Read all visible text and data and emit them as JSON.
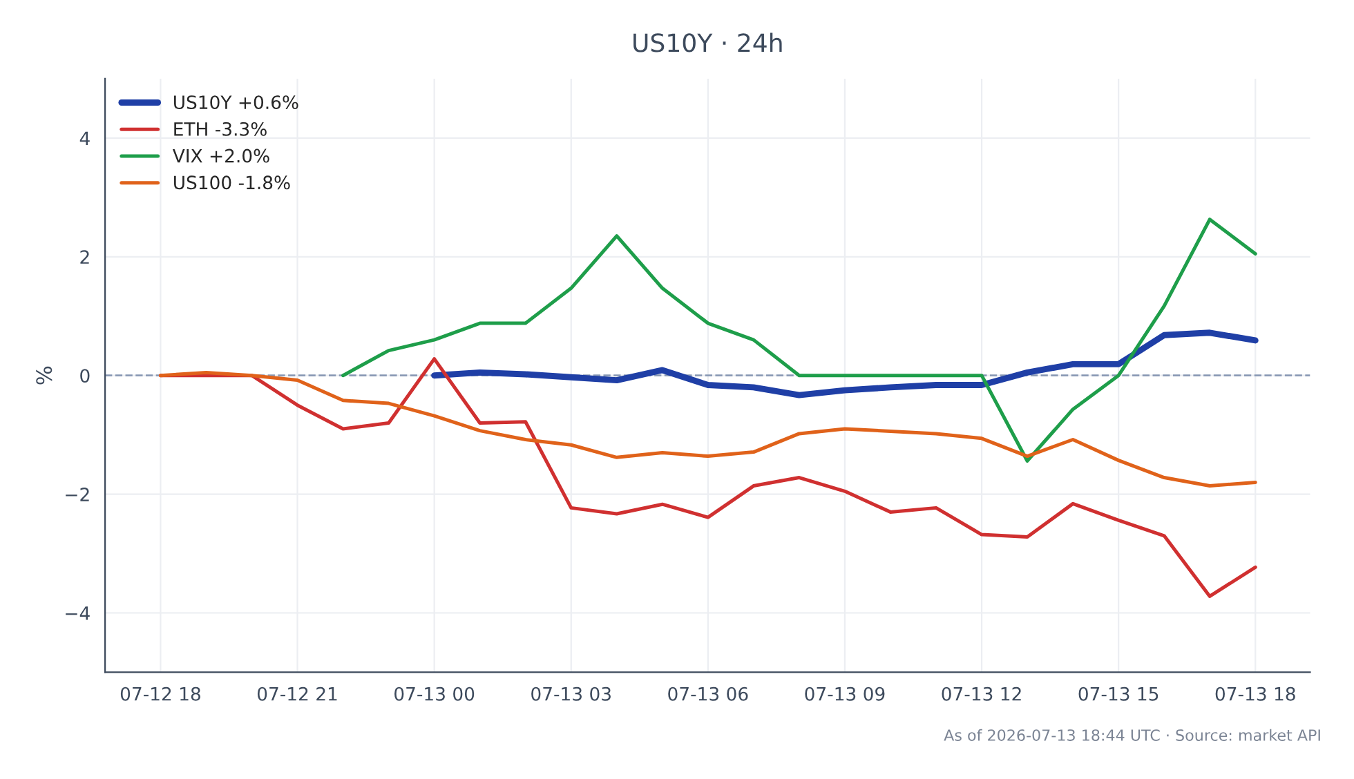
{
  "chart_data": {
    "type": "line",
    "title": "US10Y · 24h",
    "ylabel": "%",
    "x": [
      "2026-07-12T18:00",
      "2026-07-12T19:00",
      "2026-07-12T20:00",
      "2026-07-12T21:00",
      "2026-07-12T22:00",
      "2026-07-12T23:00",
      "2026-07-13T00:00",
      "2026-07-13T01:00",
      "2026-07-13T02:00",
      "2026-07-13T03:00",
      "2026-07-13T04:00",
      "2026-07-13T05:00",
      "2026-07-13T06:00",
      "2026-07-13T07:00",
      "2026-07-13T08:00",
      "2026-07-13T09:00",
      "2026-07-13T10:00",
      "2026-07-13T11:00",
      "2026-07-13T12:00",
      "2026-07-13T13:00",
      "2026-07-13T14:00",
      "2026-07-13T15:00",
      "2026-07-13T16:00",
      "2026-07-13T17:00",
      "2026-07-13T18:00"
    ],
    "series": [
      {
        "name": "US10Y +0.6%",
        "color": "#1f3fa6",
        "values": [
          null,
          null,
          null,
          null,
          null,
          null,
          0,
          0.05,
          0.02,
          -0.03,
          -0.08,
          0.09,
          -0.16,
          -0.2,
          -0.33,
          -0.25,
          -0.2,
          -0.16,
          -0.16,
          0.05,
          0.19,
          0.19,
          0.68,
          0.72,
          0.59
        ]
      },
      {
        "name": "ETH -3.3%",
        "color": "#d03030",
        "values": [
          0,
          0,
          0,
          -0.5,
          -0.9,
          -0.8,
          0.28,
          -0.8,
          -0.78,
          -2.23,
          -2.33,
          -2.17,
          -2.39,
          -1.86,
          -1.72,
          -1.95,
          -2.3,
          -2.23,
          -2.68,
          -2.72,
          -2.16,
          -2.44,
          -2.7,
          -3.72,
          -3.23
        ]
      },
      {
        "name": "VIX +2.0%",
        "color": "#1e9e4a",
        "values": [
          null,
          null,
          null,
          null,
          0,
          0.42,
          0.6,
          0.88,
          0.88,
          1.47,
          2.35,
          1.47,
          0.88,
          0.6,
          0,
          0,
          0,
          0,
          0,
          -1.44,
          -0.57,
          0,
          1.17,
          2.63,
          2.05
        ]
      },
      {
        "name": "US100 -1.8%",
        "color": "#e0621a",
        "values": [
          0,
          0.05,
          0,
          -0.08,
          -0.42,
          -0.47,
          -0.68,
          -0.93,
          -1.08,
          -1.17,
          -1.38,
          -1.3,
          -1.36,
          -1.29,
          -0.98,
          -0.9,
          -0.94,
          -0.98,
          -1.06,
          -1.36,
          -1.08,
          -1.43,
          -1.72,
          -1.86,
          -1.8
        ]
      }
    ],
    "xlim": [
      "2026-07-12T16:47",
      "2026-07-13T19:12"
    ],
    "xticks": [
      {
        "value": "2026-07-12T18:00",
        "label": "07-12 18"
      },
      {
        "value": "2026-07-12T21:00",
        "label": "07-12 21"
      },
      {
        "value": "2026-07-13T00:00",
        "label": "07-13 00"
      },
      {
        "value": "2026-07-13T03:00",
        "label": "07-13 03"
      },
      {
        "value": "2026-07-13T06:00",
        "label": "07-13 06"
      },
      {
        "value": "2026-07-13T09:00",
        "label": "07-13 09"
      },
      {
        "value": "2026-07-13T12:00",
        "label": "07-13 12"
      },
      {
        "value": "2026-07-13T15:00",
        "label": "07-13 15"
      },
      {
        "value": "2026-07-13T18:00",
        "label": "07-13 18"
      }
    ],
    "ylim": [
      -5,
      5
    ],
    "yticks": [
      {
        "value": -4,
        "label": "−4"
      },
      {
        "value": -2,
        "label": "−2"
      },
      0,
      2,
      4
    ],
    "ref_lines": [
      {
        "axis": "y",
        "value": 0,
        "color": "#8a9ab5",
        "line_style": "dashed"
      }
    ],
    "grid": true,
    "legend": "top left",
    "annotations": [
      "As of 2026-07-13 18:44 UTC · Source: market API"
    ]
  }
}
